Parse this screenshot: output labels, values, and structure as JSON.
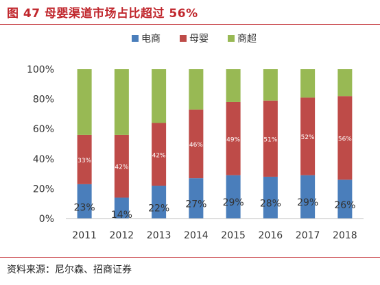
{
  "figure": {
    "title": "图 47 母婴渠道市场占比超过 56%",
    "source": "资料来源：尼尔森、招商证券"
  },
  "colors": {
    "title": "#c0262c",
    "series": [
      "#4a7ebb",
      "#be4b48",
      "#98b954"
    ]
  },
  "chart_data": {
    "type": "bar",
    "stacked": true,
    "categories": [
      "2011",
      "2012",
      "2013",
      "2014",
      "2015",
      "2016",
      "2017",
      "2018"
    ],
    "series": [
      {
        "name": "电商",
        "values": [
          23,
          14,
          22,
          27,
          29,
          28,
          29,
          26
        ],
        "labels": [
          "23%",
          "14%",
          "22%",
          "27%",
          "29%",
          "28%",
          "29%",
          "26%"
        ]
      },
      {
        "name": "母婴",
        "values": [
          33,
          42,
          42,
          46,
          49,
          51,
          52,
          56
        ],
        "labels": [
          "33%",
          "42%",
          "42%",
          "46%",
          "49%",
          "51%",
          "52%",
          "56%"
        ]
      },
      {
        "name": "商超",
        "values": [
          44,
          44,
          36,
          27,
          22,
          21,
          19,
          18
        ],
        "labels": []
      }
    ],
    "ylim": [
      0,
      100
    ],
    "yticks": [
      "0%",
      "20%",
      "40%",
      "60%",
      "80%",
      "100%"
    ],
    "legend_position": "top",
    "grid": false
  }
}
